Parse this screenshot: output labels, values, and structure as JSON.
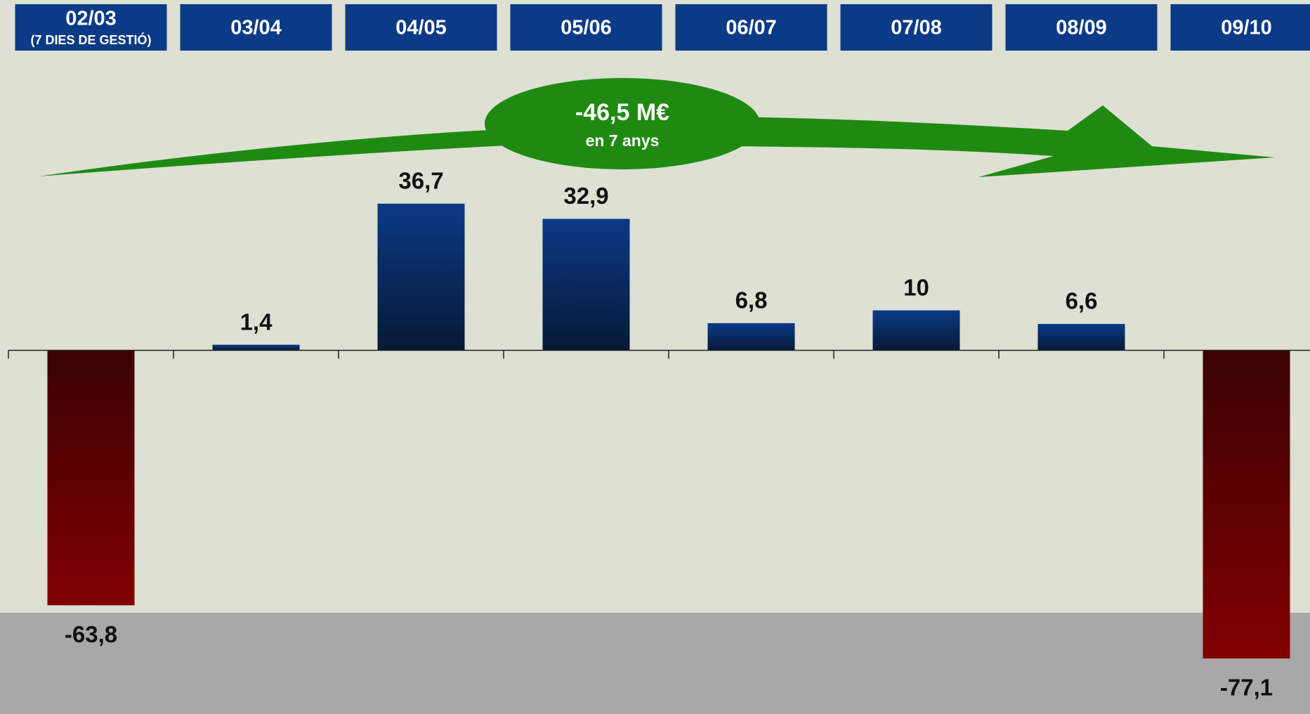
{
  "chart_data": {
    "type": "bar",
    "categories": [
      "02/03",
      "03/04",
      "04/05",
      "05/06",
      "06/07",
      "07/08",
      "08/09",
      "09/10"
    ],
    "category_note": "(7 DIES DE GESTIÓ)",
    "values": [
      -63.8,
      1.4,
      36.7,
      32.9,
      6.8,
      10,
      6.6,
      -77.1
    ],
    "value_labels": [
      "-63,8",
      "1,4",
      "36,7",
      "32,9",
      "6,8",
      "10",
      "6,6",
      "-77,1"
    ],
    "ylim": [
      -91,
      75
    ],
    "colors": {
      "positive": [
        "#0b3a86",
        "#061936"
      ],
      "negative": [
        "#3a0303",
        "#820000"
      ],
      "header": "#0b3a86",
      "arrow": "#1f8a12"
    },
    "annotation": {
      "title": "-46,5 M€",
      "subtitle": "en 7 anys"
    }
  }
}
